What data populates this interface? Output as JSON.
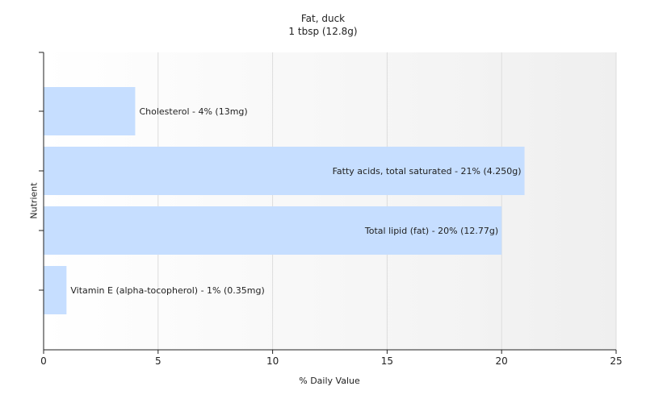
{
  "chart_data": {
    "type": "bar",
    "orientation": "horizontal",
    "title": "Fat, duck",
    "subtitle": "1 tbsp (12.8g)",
    "xlabel": "% Daily Value",
    "ylabel": "Nutrient",
    "xlim": [
      0,
      25
    ],
    "xticks": [
      "0",
      "5",
      "10",
      "15",
      "20",
      "25"
    ],
    "grid": true,
    "bar_color": "#c6deff",
    "bars": [
      {
        "value": 4,
        "label": "Cholesterol - 4% (13mg)"
      },
      {
        "value": 21,
        "label": "Fatty acids, total saturated - 21% (4.250g)"
      },
      {
        "value": 20,
        "label": "Total lipid (fat) - 20% (12.77g)"
      },
      {
        "value": 1,
        "label": "Vitamin E (alpha-tocopherol) - 1% (0.35mg)"
      }
    ]
  }
}
